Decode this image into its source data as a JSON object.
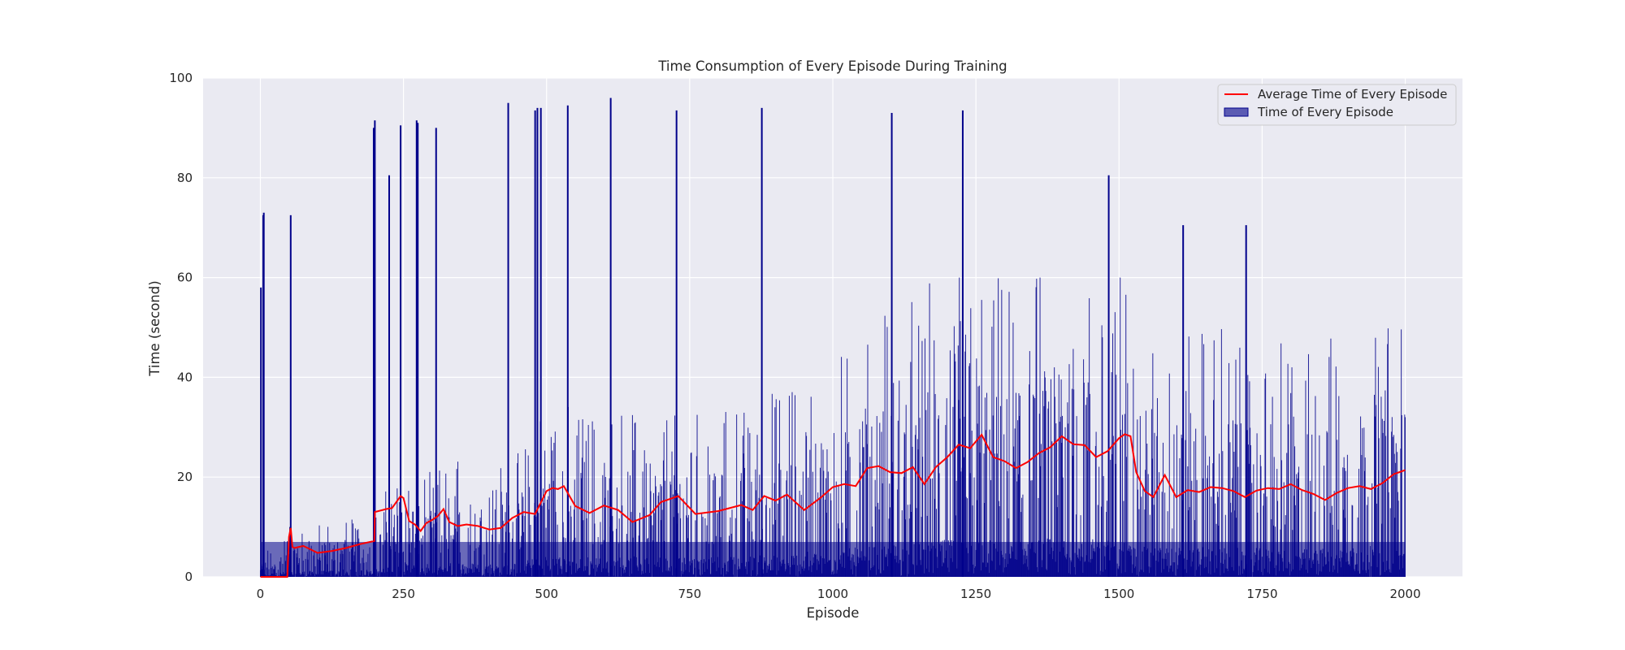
{
  "chart_data": {
    "type": "bar",
    "title": "Time Consumption of Every Episode During Training",
    "xlabel": "Episode",
    "ylabel": "Time (second)",
    "xlim": [
      -100,
      2100
    ],
    "ylim": [
      0,
      100
    ],
    "x_ticks": [
      0,
      250,
      500,
      750,
      1000,
      1250,
      1500,
      1750,
      2000
    ],
    "y_ticks": [
      0,
      20,
      40,
      60,
      80,
      100
    ],
    "grid": true,
    "legend_position": "top-right",
    "colors": {
      "background": "#eaeaf2",
      "grid": "#ffffff",
      "bars": "#00008b",
      "average_line": "#ff0000"
    },
    "series": [
      {
        "name": "Average Time of Every Episode",
        "kind": "line",
        "x": [
          0,
          25,
          40,
          47,
          50,
          53,
          56,
          60,
          75,
          100,
          125,
          150,
          175,
          199,
          200,
          220,
          230,
          245,
          250,
          260,
          270,
          280,
          290,
          300,
          310,
          320,
          330,
          345,
          360,
          380,
          400,
          420,
          440,
          460,
          480,
          500,
          510,
          520,
          530,
          550,
          575,
          600,
          625,
          650,
          680,
          700,
          730,
          760,
          800,
          840,
          860,
          880,
          900,
          920,
          950,
          980,
          1000,
          1020,
          1040,
          1060,
          1080,
          1100,
          1120,
          1140,
          1160,
          1180,
          1200,
          1220,
          1240,
          1260,
          1280,
          1300,
          1320,
          1340,
          1360,
          1380,
          1400,
          1420,
          1440,
          1460,
          1480,
          1500,
          1510,
          1520,
          1530,
          1545,
          1560,
          1580,
          1600,
          1620,
          1640,
          1660,
          1680,
          1700,
          1720,
          1740,
          1760,
          1780,
          1800,
          1820,
          1840,
          1860,
          1880,
          1900,
          1920,
          1940,
          1960,
          1980,
          2000
        ],
        "values": [
          0,
          0,
          0,
          0,
          8,
          9.8,
          6,
          5.8,
          6.2,
          4.8,
          5.2,
          5.8,
          6.6,
          7.2,
          13,
          13.6,
          13.8,
          16.2,
          15.8,
          11.2,
          10.5,
          9.2,
          10.8,
          11.4,
          12.2,
          13.6,
          11,
          10.2,
          10.5,
          10.2,
          9.5,
          9.8,
          11.8,
          13,
          12.6,
          17.2,
          17.8,
          17.6,
          18.2,
          14.2,
          12.8,
          14.3,
          13.4,
          11,
          12.4,
          15,
          16.2,
          12.6,
          13.2,
          14.4,
          13.4,
          16.2,
          15.3,
          16.5,
          13.4,
          16,
          18,
          18.6,
          18.2,
          21.8,
          22.2,
          21,
          20.8,
          22,
          18.6,
          22,
          24,
          26.5,
          25.8,
          28.5,
          24,
          23.2,
          21.8,
          23,
          24.8,
          26,
          28.2,
          26.6,
          26.4,
          24,
          25.2,
          27.8,
          28.6,
          28.2,
          21,
          17.2,
          16,
          20.4,
          16,
          17.4,
          17,
          18,
          17.8,
          17.2,
          16,
          17.3,
          17.8,
          17.6,
          18.6,
          17.4,
          16.6,
          15.4,
          16.8,
          17.8,
          18.2,
          17.6,
          18.8,
          20.6,
          21.4
        ]
      },
      {
        "name": "Time of Every Episode",
        "kind": "bar",
        "x_start": 0,
        "x_end": 2000,
        "x_step": 1,
        "baseline_profile": {
          "x": [
            0,
            50,
            100,
            150,
            200,
            250,
            300,
            350,
            400,
            450,
            500,
            600,
            700,
            800,
            900,
            1000,
            1050,
            1100,
            1150,
            1200,
            1250,
            1300,
            1400,
            1450,
            1500,
            1520,
            1550,
            1600,
            1700,
            1800,
            1900,
            2000
          ],
          "values": [
            2,
            4.5,
            5,
            6,
            6,
            12,
            10,
            12,
            11,
            12,
            17,
            16,
            17,
            16,
            18,
            22,
            24,
            26,
            27,
            30,
            32,
            28,
            32,
            30,
            33,
            26,
            24,
            24,
            24,
            22,
            24,
            26
          ]
        },
        "spikes": [
          {
            "x": 1,
            "value": 58
          },
          {
            "x": 3,
            "value": 1.5
          },
          {
            "x": 5,
            "value": 72.5
          },
          {
            "x": 6,
            "value": 73
          },
          {
            "x": 52,
            "value": 10
          },
          {
            "x": 53,
            "value": 72.5
          },
          {
            "x": 198,
            "value": 90
          },
          {
            "x": 200,
            "value": 91.5
          },
          {
            "x": 225,
            "value": 80.5
          },
          {
            "x": 245,
            "value": 90.5
          },
          {
            "x": 273,
            "value": 91.5
          },
          {
            "x": 275,
            "value": 91
          },
          {
            "x": 307,
            "value": 90
          },
          {
            "x": 433,
            "value": 95
          },
          {
            "x": 480,
            "value": 93.5
          },
          {
            "x": 484,
            "value": 94
          },
          {
            "x": 490,
            "value": 94
          },
          {
            "x": 537,
            "value": 94.5
          },
          {
            "x": 612,
            "value": 96
          },
          {
            "x": 727,
            "value": 93.5
          },
          {
            "x": 876,
            "value": 94
          },
          {
            "x": 1103,
            "value": 93
          },
          {
            "x": 1227,
            "value": 93.5
          },
          {
            "x": 1482,
            "value": 80.5
          },
          {
            "x": 1612,
            "value": 70.5
          },
          {
            "x": 1722,
            "value": 70.5
          }
        ]
      }
    ]
  }
}
